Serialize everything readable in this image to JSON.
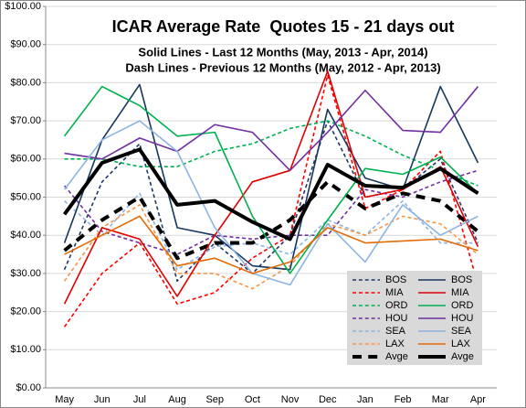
{
  "chart_data": {
    "type": "line",
    "title": "ICAR Average Rate  Quotes 15 - 21 days out",
    "subtitle": [
      "Solid Lines - Last 12 Months (May, 2013 - Apr, 2014)",
      "Dash Lines - Previous 12 Months (May, 2012 - Apr, 2013)"
    ],
    "categories": [
      "May",
      "Jun",
      "Jul",
      "Aug",
      "Sep",
      "Oct",
      "Nov",
      "Dec",
      "Jan",
      "Feb",
      "Mar",
      "Apr"
    ],
    "ylim": [
      0,
      100
    ],
    "yticks": [
      {
        "value": 0,
        "label": "$0.00"
      },
      {
        "value": 10,
        "label": "$10.00"
      },
      {
        "value": 20,
        "label": "$20.00"
      },
      {
        "value": 30,
        "label": "$30.00"
      },
      {
        "value": 40,
        "label": "$40.00"
      },
      {
        "value": 50,
        "label": "$50.00"
      },
      {
        "value": 60,
        "label": "$60.00"
      },
      {
        "value": 70,
        "label": "$70.00"
      },
      {
        "value": 80,
        "label": "$80.00"
      },
      {
        "value": 90,
        "label": "$90.00"
      },
      {
        "value": 100,
        "label": "$100.00"
      }
    ],
    "grid": true,
    "legend": "lower right",
    "series": [
      {
        "name": "BOS",
        "color": "#1f3864",
        "dash": true,
        "line_width": 1.6,
        "values": [
          31,
          54,
          64,
          28,
          38,
          30,
          40,
          70,
          50,
          52,
          60,
          38
        ]
      },
      {
        "name": "MIA",
        "color": "#ff0000",
        "dash": true,
        "line_width": 1.6,
        "values": [
          16,
          30,
          38,
          22,
          25,
          34,
          40,
          82,
          47,
          52,
          62,
          27
        ]
      },
      {
        "name": "ORD",
        "color": "#00b050",
        "dash": true,
        "line_width": 1.6,
        "values": [
          60,
          60,
          58,
          58,
          62,
          64,
          68,
          70,
          66,
          61,
          57,
          53
        ]
      },
      {
        "name": "HOU",
        "color": "#7030a0",
        "dash": true,
        "line_width": 1.6,
        "values": [
          53,
          41,
          38,
          35,
          40,
          39,
          40,
          40,
          52,
          50,
          54,
          57
        ]
      },
      {
        "name": "SEA",
        "color": "#8db4e2",
        "dash": true,
        "line_width": 1.6,
        "values": [
          49,
          40,
          51,
          31,
          37,
          38,
          35,
          44,
          40,
          49,
          38,
          38
        ]
      },
      {
        "name": "LAX",
        "color": "#f79646",
        "dash": true,
        "line_width": 1.6,
        "values": [
          28,
          42,
          48,
          30,
          30,
          26,
          32,
          43,
          40,
          45,
          43,
          35
        ]
      },
      {
        "name": "Avge",
        "color": "#000000",
        "dash": true,
        "line_width": 4,
        "values": [
          36,
          44,
          50,
          34,
          38,
          38,
          44,
          54,
          47,
          51,
          49,
          41
        ]
      },
      {
        "name": "BOS",
        "color": "#17375e",
        "dash": false,
        "line_width": 1.6,
        "values": [
          38,
          65,
          79.5,
          42,
          40,
          32,
          31,
          73,
          55,
          52,
          79,
          59
        ]
      },
      {
        "name": "MIA",
        "color": "#e00000",
        "dash": false,
        "line_width": 1.6,
        "values": [
          22,
          42,
          39,
          24,
          40,
          54,
          57,
          83,
          50,
          52,
          58,
          37
        ]
      },
      {
        "name": "ORD",
        "color": "#00b050",
        "dash": false,
        "line_width": 1.6,
        "values": [
          66,
          79,
          74,
          66,
          67,
          45,
          30,
          44,
          57.5,
          56,
          60.5,
          51
        ]
      },
      {
        "name": "HOU",
        "color": "#7030a0",
        "dash": false,
        "line_width": 1.6,
        "values": [
          61.5,
          60,
          65.5,
          62,
          69,
          67,
          57,
          67,
          78,
          67.5,
          67,
          79
        ]
      },
      {
        "name": "SEA",
        "color": "#8db4e2",
        "dash": false,
        "line_width": 1.6,
        "values": [
          52,
          65,
          70,
          62,
          42,
          30,
          27,
          43,
          33,
          48,
          40,
          45
        ]
      },
      {
        "name": "LAX",
        "color": "#e26b0a",
        "dash": false,
        "line_width": 1.6,
        "values": [
          35,
          40,
          45,
          32,
          34,
          30,
          33,
          42,
          38,
          38.5,
          39,
          36
        ]
      },
      {
        "name": "Avge",
        "color": "#000000",
        "dash": false,
        "line_width": 4,
        "values": [
          45.5,
          59,
          62.5,
          48,
          49,
          43.5,
          39,
          58.5,
          53,
          52.5,
          57.5,
          51
        ]
      }
    ]
  }
}
